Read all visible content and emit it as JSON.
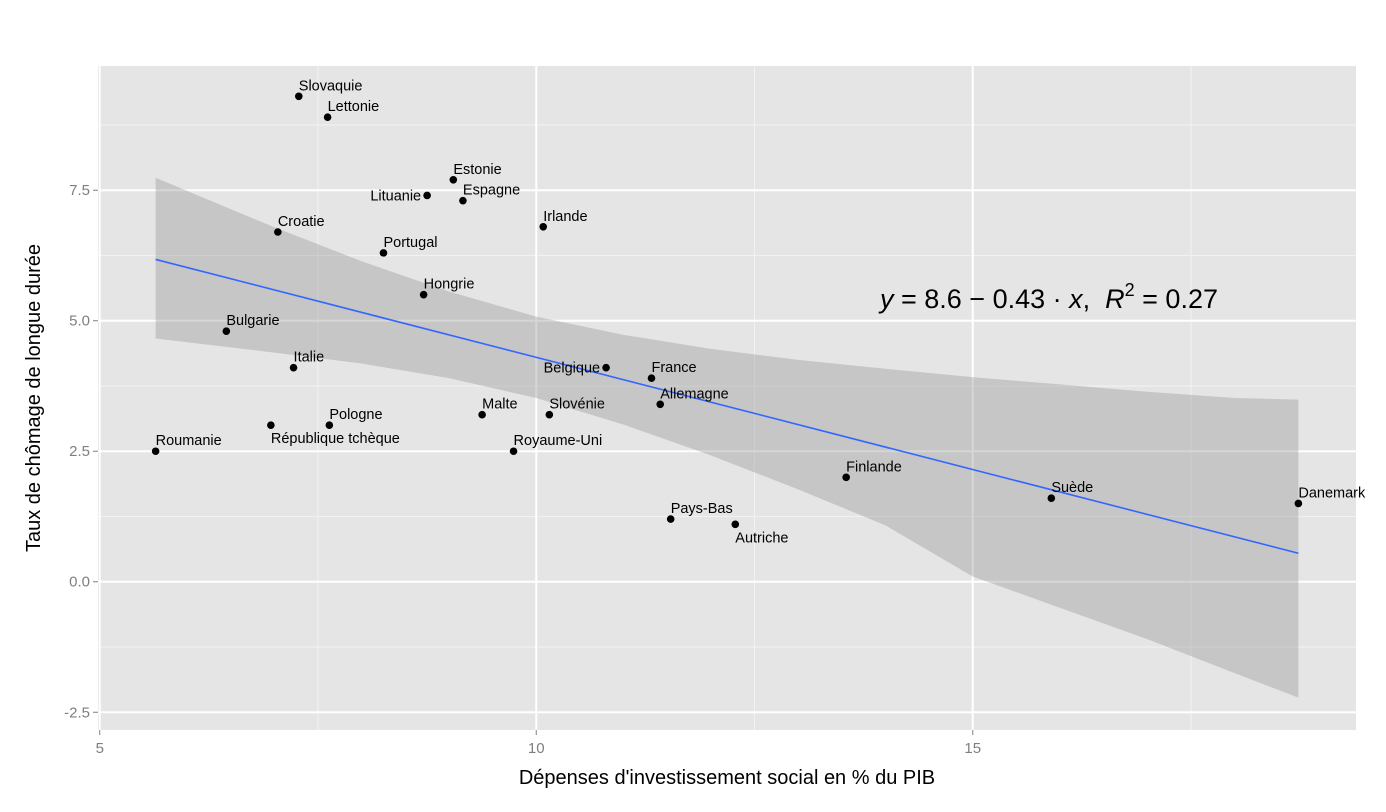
{
  "chart_data": {
    "type": "scatter",
    "title": "",
    "xlabel": "Dépenses d'investissement social en % du PIB",
    "ylabel": "Taux de chômage de longue durée",
    "xlim": [
      4.98,
      19.39
    ],
    "ylim": [
      -2.84,
      9.88
    ],
    "x_ticks": [
      5,
      10,
      15
    ],
    "x_tick_labels": [
      "5",
      "10",
      "15"
    ],
    "y_ticks": [
      -2.5,
      0,
      2.5,
      5,
      7.5
    ],
    "y_tick_labels": [
      "-2.5",
      "0.0",
      "2.5",
      "5.0",
      "7.5"
    ],
    "grid": true,
    "points": [
      {
        "label": "Slovaquie",
        "x": 7.28,
        "y": 9.3
      },
      {
        "label": "Lettonie",
        "x": 7.61,
        "y": 8.9
      },
      {
        "label": "Estonie",
        "x": 9.05,
        "y": 7.7
      },
      {
        "label": "Lituanie",
        "x": 8.75,
        "y": 7.4
      },
      {
        "label": "Espagne",
        "x": 9.16,
        "y": 7.3
      },
      {
        "label": "Irlande",
        "x": 10.08,
        "y": 6.8
      },
      {
        "label": "Croatie",
        "x": 7.04,
        "y": 6.7
      },
      {
        "label": "Portugal",
        "x": 8.25,
        "y": 6.3
      },
      {
        "label": "Hongrie",
        "x": 8.71,
        "y": 5.5
      },
      {
        "label": "Bulgarie",
        "x": 6.45,
        "y": 4.8
      },
      {
        "label": "Italie",
        "x": 7.22,
        "y": 4.1
      },
      {
        "label": "Belgique",
        "x": 10.8,
        "y": 4.1
      },
      {
        "label": "France",
        "x": 11.32,
        "y": 3.9
      },
      {
        "label": "Allemagne",
        "x": 11.42,
        "y": 3.4
      },
      {
        "label": "Malte",
        "x": 9.38,
        "y": 3.2
      },
      {
        "label": "Slovénie",
        "x": 10.15,
        "y": 3.2
      },
      {
        "label": "République tchèque",
        "x": 6.96,
        "y": 3.0
      },
      {
        "label": "Pologne",
        "x": 7.63,
        "y": 3.0
      },
      {
        "label": "Roumanie",
        "x": 5.64,
        "y": 2.5
      },
      {
        "label": "Royaume-Uni",
        "x": 9.74,
        "y": 2.5
      },
      {
        "label": "Finlande",
        "x": 13.55,
        "y": 2.0
      },
      {
        "label": "Suède",
        "x": 15.9,
        "y": 1.6
      },
      {
        "label": "Danemark",
        "x": 18.73,
        "y": 1.5
      },
      {
        "label": "Pays-Bas",
        "x": 11.54,
        "y": 1.2
      },
      {
        "label": "Autriche",
        "x": 12.28,
        "y": 1.1
      }
    ],
    "regression": {
      "intercept": 8.6,
      "slope": -0.43,
      "r2": 0.27,
      "x_range": [
        5.64,
        18.73
      ],
      "color": "#3366ff"
    },
    "confidence_band": {
      "x": [
        5.64,
        7,
        8,
        9,
        10,
        11,
        12,
        13,
        14,
        15,
        16,
        17,
        18,
        18.73
      ],
      "lower": [
        4.66,
        4.39,
        4.18,
        3.9,
        3.52,
        3.01,
        2.42,
        1.77,
        1.08,
        0.1,
        -0.5,
        -1.1,
        -1.75,
        -2.22
      ],
      "upper": [
        7.74,
        6.79,
        6.14,
        5.56,
        5.08,
        4.73,
        4.46,
        4.25,
        4.08,
        3.92,
        3.78,
        3.64,
        3.52,
        3.49
      ],
      "color": "#999999"
    },
    "annotation": {
      "y_var": "y",
      "eq_rest": " = 8.6 − 0.43 · ",
      "x_var": "x",
      "sep": ",  ",
      "r_var": "R",
      "r_exp": "2",
      "r_rest": " = 0.27"
    },
    "colors": {
      "panel": "#e5e5e5",
      "grid": "#ffffff",
      "points": "#000000"
    }
  }
}
